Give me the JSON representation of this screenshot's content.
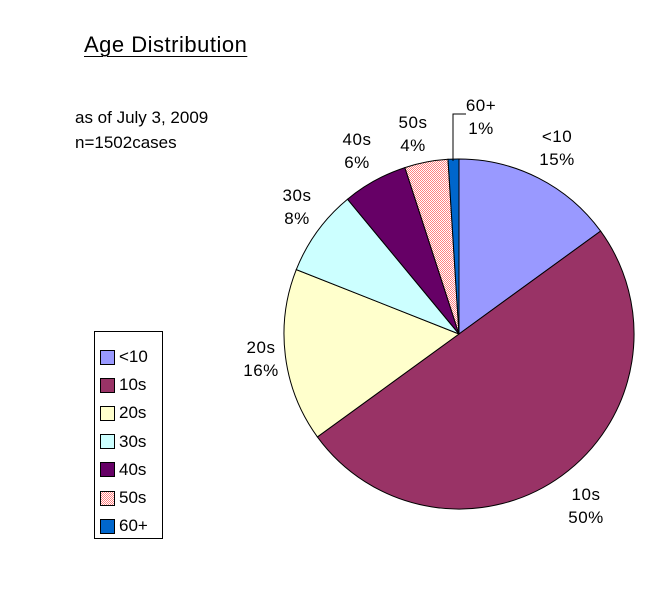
{
  "page": {
    "background": "#FFFFFF"
  },
  "chart_data": {
    "type": "pie",
    "title": "Age Distribution",
    "annotations": [
      "as of July 3, 2009",
      "n=1502cases"
    ],
    "sample_size": 1502,
    "categories": [
      "<10",
      "10s",
      "20s",
      "30s",
      "40s",
      "50s",
      "60+"
    ],
    "values": [
      15,
      50,
      16,
      8,
      6,
      4,
      1
    ],
    "unit": "%",
    "percent_labels": [
      "15%",
      "50%",
      "16%",
      "8%",
      "6%",
      "4%",
      "1%"
    ],
    "colors": [
      "#9999FF",
      "#993366",
      "#FFFFCC",
      "#CCFFFF",
      "#660066",
      "#FF8080",
      "#0066CC"
    ],
    "pattern_fill": {
      "category": "50s",
      "style": "checkerboard",
      "colors": [
        "#FF8080",
        "#FFFFFF"
      ]
    },
    "slice_border_color": "#000000",
    "start_angle_deg": 0,
    "direction": "clockwise",
    "label_format": "category newline percent",
    "legend_position": "middle-left",
    "legend_border": "#000000"
  }
}
